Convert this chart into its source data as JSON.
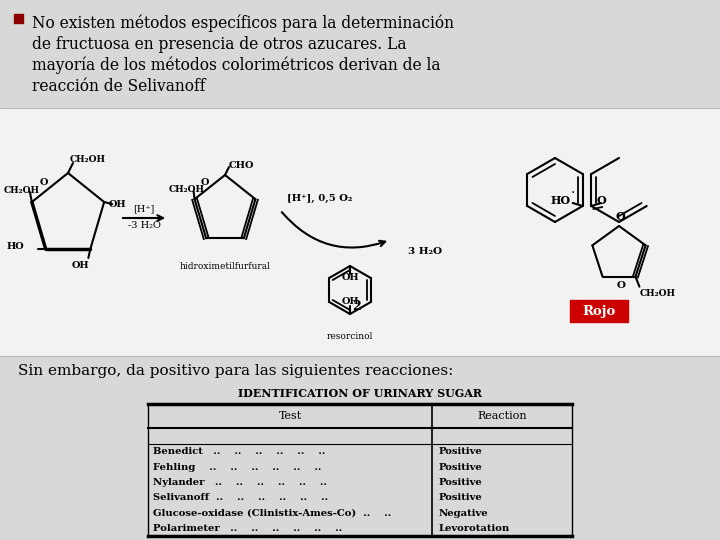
{
  "bg_color": "#d8d8d8",
  "bullet_color": "#8B0000",
  "bullet_text_lines": [
    "No existen métodos específicos para la determinación",
    "de fructuosa en presencia de otros azucares. La",
    "mayoría de los métodos colorimétricos derivan de la",
    "reacción de Selivanoff"
  ],
  "bottom_text": "Sin embargo, da positivo para las siguientes reacciones:",
  "table_title": "IDENTIFICATION OF URINARY SUGAR",
  "table_headers": [
    "Test",
    "Reaction"
  ],
  "table_rows": [
    [
      "Benedict   ..    ..    ..    ..    ..    ..",
      "Positive"
    ],
    [
      "Fehling    ..    ..    ..    ..    ..    ..",
      "Positive"
    ],
    [
      "Nylander   ..    ..    ..    ..    ..    ..",
      "Positive"
    ],
    [
      "Selivanoff  ..    ..    ..    ..    ..    ..",
      "Positive"
    ],
    [
      "Glucose-oxidase (Clinistix-Ames-Co)  ..    ..",
      "Negative"
    ],
    [
      "Polarimeter   ..    ..    ..    ..    ..    ..",
      "Levorotation"
    ]
  ],
  "rojo_box_color": "#cc0000",
  "rojo_text": "Rojo",
  "chem_bg": "#f0f0f0",
  "white": "#ffffff"
}
